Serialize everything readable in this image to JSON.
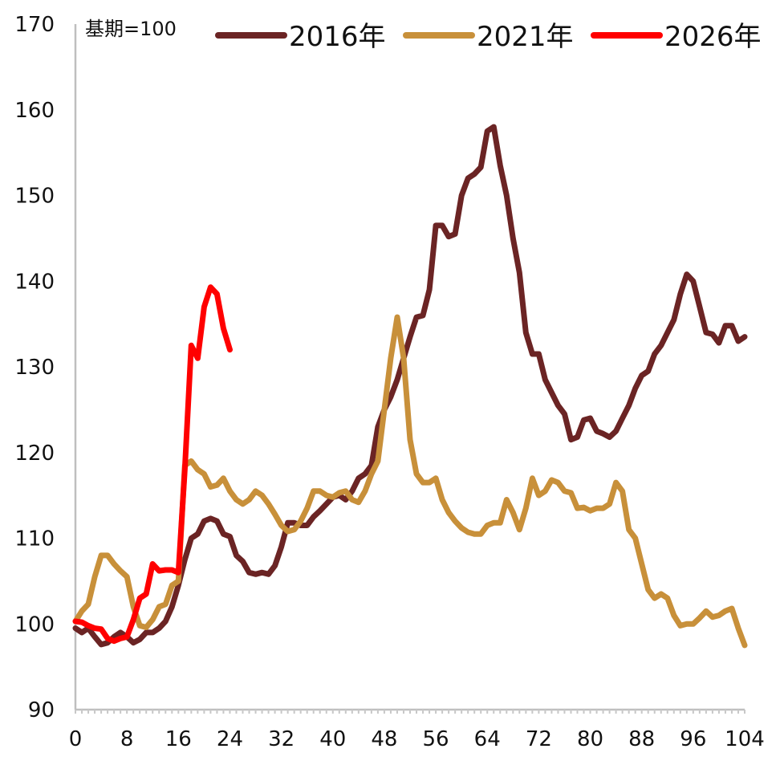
{
  "chart_data": {
    "type": "line",
    "title": "",
    "xlabel": "",
    "ylabel": "",
    "unit_note": "基期=100",
    "xlim": [
      0,
      104
    ],
    "ylim": [
      90,
      170
    ],
    "x_ticks": [
      0,
      8,
      16,
      24,
      32,
      40,
      48,
      56,
      64,
      72,
      80,
      88,
      96,
      104
    ],
    "y_ticks": [
      90,
      100,
      110,
      120,
      130,
      140,
      150,
      160,
      170
    ],
    "grid": false,
    "legend_position": "top",
    "series": [
      {
        "name": "2016年",
        "color": "#6b2424",
        "points": [
          [
            0,
            99.5
          ],
          [
            1,
            99.0
          ],
          [
            2,
            99.5
          ],
          [
            3,
            98.5
          ],
          [
            4,
            97.6
          ],
          [
            5,
            97.8
          ],
          [
            6,
            98.5
          ],
          [
            7,
            99.0
          ],
          [
            8,
            98.5
          ],
          [
            9,
            97.8
          ],
          [
            10,
            98.2
          ],
          [
            11,
            99.0
          ],
          [
            12,
            99.0
          ],
          [
            13,
            99.5
          ],
          [
            14,
            100.3
          ],
          [
            15,
            102.0
          ],
          [
            16,
            104.5
          ],
          [
            17,
            107.5
          ],
          [
            18,
            110.0
          ],
          [
            19,
            110.5
          ],
          [
            20,
            112.0
          ],
          [
            21,
            112.3
          ],
          [
            22,
            112.0
          ],
          [
            23,
            110.5
          ],
          [
            24,
            110.2
          ],
          [
            25,
            108.0
          ],
          [
            26,
            107.3
          ],
          [
            27,
            106.0
          ],
          [
            28,
            105.8
          ],
          [
            29,
            106.0
          ],
          [
            30,
            105.8
          ],
          [
            31,
            106.8
          ],
          [
            32,
            109.0
          ],
          [
            33,
            111.8
          ],
          [
            34,
            111.8
          ],
          [
            35,
            111.5
          ],
          [
            36,
            111.5
          ],
          [
            37,
            112.5
          ],
          [
            38,
            113.2
          ],
          [
            39,
            114.0
          ],
          [
            40,
            114.8
          ],
          [
            41,
            115.0
          ],
          [
            42,
            114.5
          ],
          [
            43,
            115.5
          ],
          [
            44,
            117.0
          ],
          [
            45,
            117.5
          ],
          [
            46,
            118.5
          ],
          [
            47,
            123.0
          ],
          [
            48,
            125.0
          ],
          [
            49,
            126.5
          ],
          [
            50,
            128.5
          ],
          [
            51,
            131.0
          ],
          [
            52,
            133.5
          ],
          [
            53,
            135.8
          ],
          [
            54,
            136.0
          ],
          [
            55,
            139.0
          ],
          [
            56,
            146.5
          ],
          [
            57,
            146.5
          ],
          [
            58,
            145.2
          ],
          [
            59,
            145.5
          ],
          [
            60,
            150.0
          ],
          [
            61,
            152.0
          ],
          [
            62,
            152.5
          ],
          [
            63,
            153.3
          ],
          [
            64,
            157.5
          ],
          [
            65,
            158.0
          ],
          [
            66,
            153.5
          ],
          [
            67,
            150.0
          ],
          [
            68,
            145.0
          ],
          [
            69,
            141.0
          ],
          [
            70,
            134.0
          ],
          [
            71,
            131.5
          ],
          [
            72,
            131.5
          ],
          [
            73,
            128.5
          ],
          [
            74,
            127.0
          ],
          [
            75,
            125.5
          ],
          [
            76,
            124.5
          ],
          [
            77,
            121.5
          ],
          [
            78,
            121.8
          ],
          [
            79,
            123.8
          ],
          [
            80,
            124.0
          ],
          [
            81,
            122.5
          ],
          [
            82,
            122.2
          ],
          [
            83,
            121.8
          ],
          [
            84,
            122.5
          ],
          [
            85,
            124.0
          ],
          [
            86,
            125.5
          ],
          [
            87,
            127.5
          ],
          [
            88,
            129.0
          ],
          [
            89,
            129.5
          ],
          [
            90,
            131.5
          ],
          [
            91,
            132.5
          ],
          [
            92,
            134.0
          ],
          [
            93,
            135.5
          ],
          [
            94,
            138.5
          ],
          [
            95,
            140.8
          ],
          [
            96,
            140.0
          ],
          [
            97,
            137.0
          ],
          [
            98,
            134.0
          ],
          [
            99,
            133.8
          ],
          [
            100,
            132.8
          ],
          [
            101,
            134.8
          ],
          [
            102,
            134.8
          ],
          [
            103,
            133.0
          ],
          [
            104,
            133.5
          ]
        ]
      },
      {
        "name": "2021年",
        "color": "#c8903a",
        "points": [
          [
            0,
            100.3
          ],
          [
            1,
            101.5
          ],
          [
            2,
            102.3
          ],
          [
            3,
            105.5
          ],
          [
            4,
            108.0
          ],
          [
            5,
            108.0
          ],
          [
            6,
            107.0
          ],
          [
            7,
            106.2
          ],
          [
            8,
            105.5
          ],
          [
            9,
            102.0
          ],
          [
            10,
            99.8
          ],
          [
            11,
            99.6
          ],
          [
            12,
            100.5
          ],
          [
            13,
            102.0
          ],
          [
            14,
            102.3
          ],
          [
            15,
            104.5
          ],
          [
            16,
            105.0
          ],
          [
            17,
            118.5
          ],
          [
            18,
            119.0
          ],
          [
            19,
            118.0
          ],
          [
            20,
            117.5
          ],
          [
            21,
            116.0
          ],
          [
            22,
            116.2
          ],
          [
            23,
            117.0
          ],
          [
            24,
            115.5
          ],
          [
            25,
            114.5
          ],
          [
            26,
            114.0
          ],
          [
            27,
            114.5
          ],
          [
            28,
            115.5
          ],
          [
            29,
            115.0
          ],
          [
            30,
            114.0
          ],
          [
            31,
            112.8
          ],
          [
            32,
            111.5
          ],
          [
            33,
            110.8
          ],
          [
            34,
            111.0
          ],
          [
            35,
            112.0
          ],
          [
            36,
            113.5
          ],
          [
            37,
            115.5
          ],
          [
            38,
            115.5
          ],
          [
            39,
            115.0
          ],
          [
            40,
            114.8
          ],
          [
            41,
            115.3
          ],
          [
            42,
            115.5
          ],
          [
            43,
            114.5
          ],
          [
            44,
            114.2
          ],
          [
            45,
            115.5
          ],
          [
            46,
            117.5
          ],
          [
            47,
            119.0
          ],
          [
            48,
            125.0
          ],
          [
            49,
            131.0
          ],
          [
            50,
            135.8
          ],
          [
            51,
            131.0
          ],
          [
            52,
            121.5
          ],
          [
            53,
            117.5
          ],
          [
            54,
            116.5
          ],
          [
            55,
            116.5
          ],
          [
            56,
            117.0
          ],
          [
            57,
            114.5
          ],
          [
            58,
            113.0
          ],
          [
            59,
            112.0
          ],
          [
            60,
            111.2
          ],
          [
            61,
            110.7
          ],
          [
            62,
            110.5
          ],
          [
            63,
            110.5
          ],
          [
            64,
            111.5
          ],
          [
            65,
            111.8
          ],
          [
            66,
            111.8
          ],
          [
            67,
            114.5
          ],
          [
            68,
            113.0
          ],
          [
            69,
            111.0
          ],
          [
            70,
            113.5
          ],
          [
            71,
            117.0
          ],
          [
            72,
            115.0
          ],
          [
            73,
            115.5
          ],
          [
            74,
            116.8
          ],
          [
            75,
            116.5
          ],
          [
            76,
            115.5
          ],
          [
            77,
            115.3
          ],
          [
            78,
            113.5
          ],
          [
            79,
            113.6
          ],
          [
            80,
            113.2
          ],
          [
            81,
            113.5
          ],
          [
            82,
            113.5
          ],
          [
            83,
            114.0
          ],
          [
            84,
            116.5
          ],
          [
            85,
            115.5
          ],
          [
            86,
            111.0
          ],
          [
            87,
            110.0
          ],
          [
            88,
            107.0
          ],
          [
            89,
            104.0
          ],
          [
            90,
            103.0
          ],
          [
            91,
            103.5
          ],
          [
            92,
            103.0
          ],
          [
            93,
            101.0
          ],
          [
            94,
            99.8
          ],
          [
            95,
            100.0
          ],
          [
            96,
            100.0
          ],
          [
            97,
            100.7
          ],
          [
            98,
            101.5
          ],
          [
            99,
            100.8
          ],
          [
            100,
            101.0
          ],
          [
            101,
            101.5
          ],
          [
            102,
            101.8
          ],
          [
            103,
            99.5
          ],
          [
            104,
            97.5
          ]
        ]
      },
      {
        "name": "2026年",
        "color": "#ff0000",
        "points": [
          [
            0,
            100.3
          ],
          [
            1,
            100.2
          ],
          [
            2,
            99.8
          ],
          [
            3,
            99.5
          ],
          [
            4,
            99.4
          ],
          [
            5,
            98.3
          ],
          [
            6,
            98.0
          ],
          [
            7,
            98.3
          ],
          [
            8,
            98.5
          ],
          [
            9,
            100.5
          ],
          [
            10,
            103.0
          ],
          [
            11,
            103.5
          ],
          [
            12,
            107.0
          ],
          [
            13,
            106.2
          ],
          [
            14,
            106.3
          ],
          [
            15,
            106.3
          ],
          [
            16,
            106.0
          ],
          [
            17,
            118.0
          ],
          [
            18,
            132.5
          ],
          [
            19,
            131.0
          ],
          [
            20,
            137.0
          ],
          [
            21,
            139.3
          ],
          [
            22,
            138.5
          ],
          [
            23,
            134.5
          ],
          [
            24,
            132.0
          ]
        ]
      }
    ]
  }
}
